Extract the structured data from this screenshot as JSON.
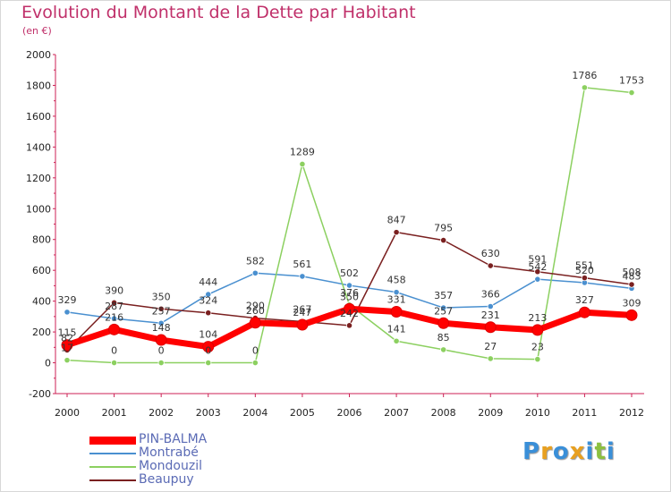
{
  "title": "Evolution du Montant de la Dette par Habitant",
  "subtitle": "(en €)",
  "chart_data": {
    "type": "line",
    "x": [
      "2000",
      "2001",
      "2002",
      "2003",
      "2004",
      "2005",
      "2006",
      "2007",
      "2008",
      "2009",
      "2010",
      "2011",
      "2012"
    ],
    "ylim": [
      -200,
      2000
    ],
    "yticks": [
      -200,
      0,
      200,
      400,
      600,
      800,
      1000,
      1200,
      1400,
      1600,
      1800,
      2000
    ],
    "grid": false,
    "legend_position": "bottom-left",
    "series": [
      {
        "name": "PIN-BALMA",
        "color": "#ff0000",
        "values": [
          115,
          216,
          148,
          104,
          260,
          247,
          350,
          331,
          257,
          231,
          213,
          327,
          309
        ]
      },
      {
        "name": "Montrabé",
        "color": "#4a90d0",
        "values": [
          329,
          287,
          257,
          444,
          582,
          561,
          502,
          458,
          357,
          366,
          542,
          520,
          483
        ]
      },
      {
        "name": "Mondouzil",
        "color": "#8cd060",
        "values": [
          17,
          0,
          0,
          0,
          0,
          1289,
          376,
          141,
          85,
          27,
          23,
          1786,
          1753
        ]
      },
      {
        "name": "Beaupuy",
        "color": "#7a2020",
        "values": [
          82,
          390,
          350,
          324,
          290,
          267,
          242,
          847,
          795,
          630,
          591,
          551,
          508
        ]
      }
    ]
  },
  "logo": {
    "text": "Proxiti",
    "letters": [
      "P",
      "r",
      "o",
      "x",
      "i",
      "t",
      "i"
    ],
    "colors": [
      "#3a8fd8",
      "#e8a020",
      "#3a8fd8",
      "#e8a020",
      "#3a8fd8",
      "#8cc040",
      "#3a8fd8"
    ]
  }
}
